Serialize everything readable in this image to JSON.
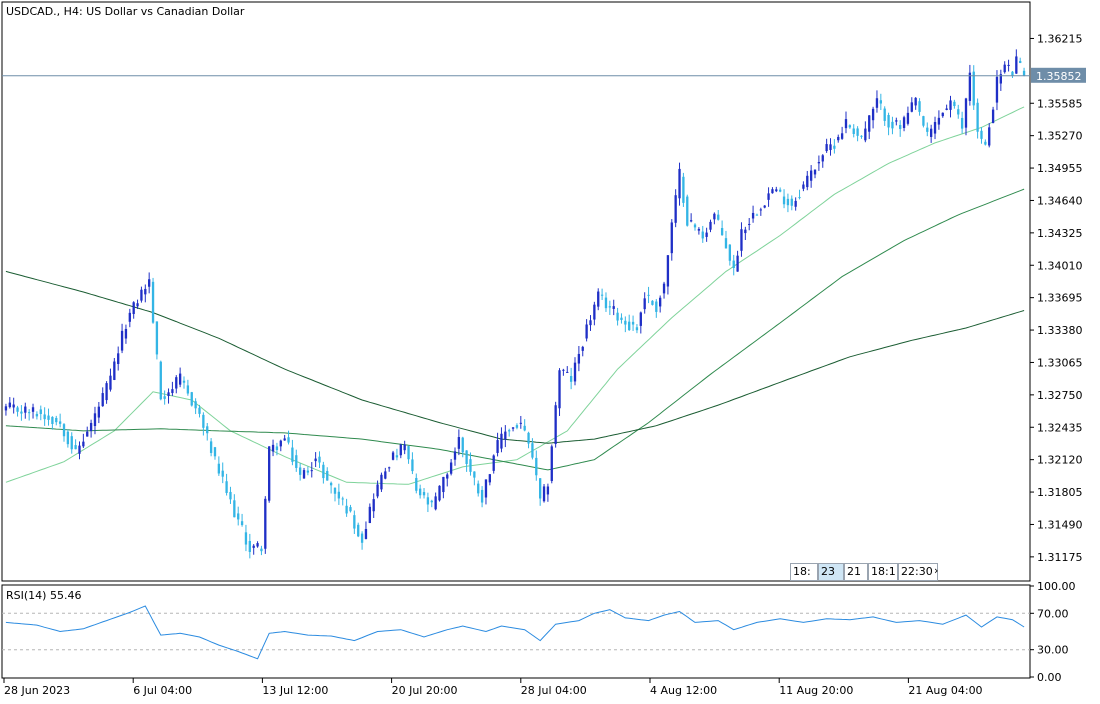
{
  "header": {
    "title": "USDCAD., H4:  US Dollar vs Canadian Dollar"
  },
  "rsi_panel": {
    "label": "RSI(14) 55.46",
    "levels": [
      70,
      30
    ],
    "ticks": [
      "100.00",
      "70.00",
      "30.00",
      "0.00"
    ]
  },
  "current_price": {
    "label": "1.35852",
    "value": 1.35852
  },
  "time_selector": {
    "labels": [
      "18:",
      "23",
      "21",
      "18:1",
      "22:30"
    ],
    "arrow": "chevron-right-icon"
  },
  "colors": {
    "bull_candle": "#1f2fc6",
    "bear_candle": "#33b5e5",
    "ma_fast": "#7fd39a",
    "ma_mid": "#2f8a4e",
    "ma_slow": "#1a5c32",
    "rsi_line": "#2b8be0",
    "price_line": "#6e8da8"
  },
  "chart_data": {
    "type": "candlestick",
    "symbol": "USDCAD.",
    "timeframe": "H4",
    "ylim": [
      1.3095,
      1.3655
    ],
    "y_ticks": [
      "1.36215",
      "1.35585",
      "1.35270",
      "1.34955",
      "1.34640",
      "1.34325",
      "1.34010",
      "1.33695",
      "1.33380",
      "1.33065",
      "1.32750",
      "1.32435",
      "1.32120",
      "1.31805",
      "1.31490",
      "1.31175"
    ],
    "x_ticks": [
      "28 Jun 2023",
      "6 Jul 04:00",
      "13 Jul 12:00",
      "20 Jul 20:00",
      "28 Jul 04:00",
      "4 Aug 12:00",
      "11 Aug 20:00",
      "21 Aug 04:00"
    ],
    "close_anchors": [
      [
        0,
        1.3262
      ],
      [
        8,
        1.3258
      ],
      [
        14,
        1.3248
      ],
      [
        18,
        1.3218
      ],
      [
        22,
        1.3246
      ],
      [
        27,
        1.329
      ],
      [
        31,
        1.3345
      ],
      [
        35,
        1.3375
      ],
      [
        37,
        1.3385
      ],
      [
        40,
        1.3272
      ],
      [
        45,
        1.329
      ],
      [
        50,
        1.3255
      ],
      [
        54,
        1.321
      ],
      [
        58,
        1.317
      ],
      [
        63,
        1.3125
      ],
      [
        66,
        1.3128
      ],
      [
        68,
        1.322
      ],
      [
        72,
        1.3232
      ],
      [
        76,
        1.3195
      ],
      [
        80,
        1.3212
      ],
      [
        84,
        1.3185
      ],
      [
        88,
        1.3165
      ],
      [
        92,
        1.3135
      ],
      [
        95,
        1.3178
      ],
      [
        99,
        1.321
      ],
      [
        103,
        1.3225
      ],
      [
        106,
        1.3182
      ],
      [
        110,
        1.3165
      ],
      [
        114,
        1.32
      ],
      [
        117,
        1.3232
      ],
      [
        120,
        1.32
      ],
      [
        123,
        1.3175
      ],
      [
        126,
        1.3218
      ],
      [
        129,
        1.324
      ],
      [
        133,
        1.3247
      ],
      [
        136,
        1.3215
      ],
      [
        138,
        1.317
      ],
      [
        140,
        1.319
      ],
      [
        143,
        1.33
      ],
      [
        146,
        1.329
      ],
      [
        150,
        1.334
      ],
      [
        153,
        1.337
      ],
      [
        156,
        1.336
      ],
      [
        160,
        1.3345
      ],
      [
        163,
        1.334
      ],
      [
        165,
        1.3372
      ],
      [
        168,
        1.336
      ],
      [
        170,
        1.3382
      ],
      [
        172,
        1.344
      ],
      [
        174,
        1.349
      ],
      [
        176,
        1.3445
      ],
      [
        180,
        1.343
      ],
      [
        183,
        1.345
      ],
      [
        186,
        1.342
      ],
      [
        188,
        1.3395
      ],
      [
        190,
        1.3435
      ],
      [
        194,
        1.3455
      ],
      [
        198,
        1.3475
      ],
      [
        203,
        1.346
      ],
      [
        207,
        1.3485
      ],
      [
        211,
        1.351
      ],
      [
        214,
        1.352
      ],
      [
        217,
        1.354
      ],
      [
        221,
        1.3525
      ],
      [
        225,
        1.356
      ],
      [
        228,
        1.354
      ],
      [
        231,
        1.3535
      ],
      [
        235,
        1.356
      ],
      [
        238,
        1.3525
      ],
      [
        241,
        1.3545
      ],
      [
        244,
        1.356
      ],
      [
        247,
        1.3535
      ],
      [
        249,
        1.359
      ],
      [
        251,
        1.353
      ],
      [
        253,
        1.3515
      ],
      [
        256,
        1.358
      ],
      [
        258,
        1.3595
      ],
      [
        260,
        1.3588
      ],
      [
        261,
        1.36
      ],
      [
        263,
        1.3585
      ]
    ],
    "moving_averages": [
      {
        "period": 21,
        "points": [
          [
            0,
            1.319
          ],
          [
            15,
            1.321
          ],
          [
            28,
            1.324
          ],
          [
            38,
            1.3278
          ],
          [
            48,
            1.327
          ],
          [
            58,
            1.324
          ],
          [
            72,
            1.3215
          ],
          [
            88,
            1.319
          ],
          [
            104,
            1.3188
          ],
          [
            118,
            1.3205
          ],
          [
            132,
            1.3212
          ],
          [
            145,
            1.324
          ],
          [
            158,
            1.33
          ],
          [
            172,
            1.335
          ],
          [
            186,
            1.3395
          ],
          [
            200,
            1.343
          ],
          [
            214,
            1.347
          ],
          [
            228,
            1.35
          ],
          [
            240,
            1.352
          ],
          [
            252,
            1.3535
          ],
          [
            263,
            1.3555
          ]
        ]
      },
      {
        "period": 50,
        "points": [
          [
            0,
            1.3245
          ],
          [
            20,
            1.324
          ],
          [
            40,
            1.3242
          ],
          [
            55,
            1.324
          ],
          [
            72,
            1.3238
          ],
          [
            92,
            1.3232
          ],
          [
            112,
            1.3222
          ],
          [
            126,
            1.3212
          ],
          [
            140,
            1.3202
          ],
          [
            152,
            1.3212
          ],
          [
            166,
            1.3248
          ],
          [
            182,
            1.3295
          ],
          [
            200,
            1.3345
          ],
          [
            216,
            1.339
          ],
          [
            232,
            1.3425
          ],
          [
            246,
            1.345
          ],
          [
            263,
            1.3475
          ]
        ]
      },
      {
        "period": 100,
        "points": [
          [
            0,
            1.3395
          ],
          [
            20,
            1.3375
          ],
          [
            38,
            1.3355
          ],
          [
            55,
            1.333
          ],
          [
            72,
            1.33
          ],
          [
            92,
            1.327
          ],
          [
            112,
            1.3248
          ],
          [
            128,
            1.3232
          ],
          [
            140,
            1.3228
          ],
          [
            152,
            1.3232
          ],
          [
            168,
            1.3245
          ],
          [
            184,
            1.3265
          ],
          [
            202,
            1.329
          ],
          [
            218,
            1.3312
          ],
          [
            234,
            1.3328
          ],
          [
            248,
            1.334
          ],
          [
            263,
            1.3357
          ]
        ]
      }
    ],
    "rsi": {
      "ylim": [
        0,
        100
      ],
      "value": 55.46,
      "points": [
        [
          0,
          60
        ],
        [
          8,
          57
        ],
        [
          14,
          50
        ],
        [
          20,
          53
        ],
        [
          26,
          62
        ],
        [
          32,
          71
        ],
        [
          36,
          78
        ],
        [
          40,
          46
        ],
        [
          45,
          48
        ],
        [
          50,
          44
        ],
        [
          55,
          35
        ],
        [
          60,
          28
        ],
        [
          65,
          20
        ],
        [
          68,
          48
        ],
        [
          72,
          50
        ],
        [
          78,
          46
        ],
        [
          84,
          45
        ],
        [
          90,
          40
        ],
        [
          96,
          50
        ],
        [
          102,
          52
        ],
        [
          108,
          44
        ],
        [
          114,
          52
        ],
        [
          118,
          56
        ],
        [
          124,
          50
        ],
        [
          128,
          56
        ],
        [
          134,
          52
        ],
        [
          138,
          40
        ],
        [
          142,
          58
        ],
        [
          148,
          62
        ],
        [
          152,
          70
        ],
        [
          156,
          74
        ],
        [
          160,
          65
        ],
        [
          166,
          62
        ],
        [
          170,
          68
        ],
        [
          174,
          72
        ],
        [
          178,
          60
        ],
        [
          184,
          62
        ],
        [
          188,
          52
        ],
        [
          194,
          60
        ],
        [
          200,
          64
        ],
        [
          206,
          60
        ],
        [
          212,
          64
        ],
        [
          218,
          63
        ],
        [
          224,
          66
        ],
        [
          230,
          60
        ],
        [
          236,
          62
        ],
        [
          242,
          58
        ],
        [
          248,
          68
        ],
        [
          252,
          55
        ],
        [
          256,
          66
        ],
        [
          260,
          63
        ],
        [
          263,
          55
        ]
      ]
    }
  }
}
